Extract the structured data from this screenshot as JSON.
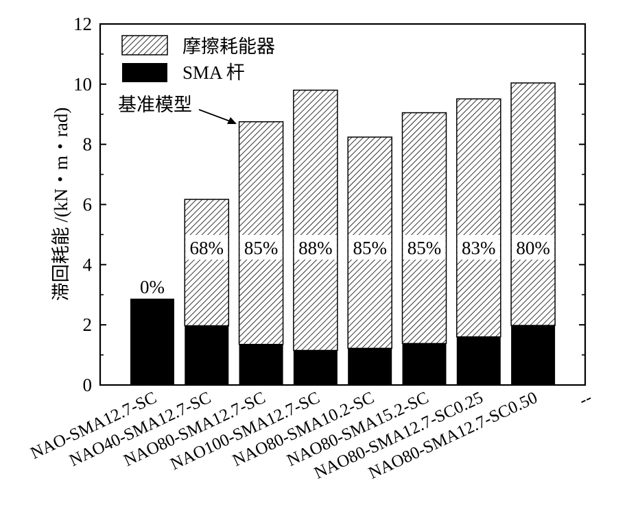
{
  "chart_data": {
    "type": "bar",
    "stacked": true,
    "ylabel": "滞回耗能 /(kN・m・rad)",
    "xlabel": "",
    "ylim": [
      0,
      12
    ],
    "yticks": [
      "0",
      "2",
      "4",
      "6",
      "8",
      "10",
      "12"
    ],
    "categories": [
      "NAO-SMA12.7-SC",
      "NAO40-SMA12.7-SC",
      "NAO80-SMA12.7-SC",
      "NAO100-SMA12.7-SC",
      "NAO80-SMA10.2-SC",
      "NAO80-SMA15.2-SC",
      "NAO80-SMA12.7-SC0.25",
      "NAO80-SMA12.7-SC0.50",
      "--"
    ],
    "series": [
      {
        "name": "SMA 杆",
        "fill": "solid-black",
        "values": [
          2.87,
          1.97,
          1.35,
          1.15,
          1.22,
          1.38,
          1.6,
          1.98,
          null
        ]
      },
      {
        "name": "摩擦耗能器",
        "fill": "hatched",
        "values": [
          0,
          4.2,
          7.4,
          8.65,
          7.02,
          7.67,
          7.91,
          8.06,
          null
        ]
      }
    ],
    "bar_labels": [
      "0%",
      "68%",
      "85%",
      "88%",
      "85%",
      "85%",
      "83%",
      "80%",
      ""
    ],
    "annotation": {
      "text": "基准模型",
      "target_index": 2
    },
    "legend": {
      "position": "top-left",
      "items": [
        "摩擦耗能器",
        "SMA 杆"
      ]
    },
    "grid": false,
    "colors": {
      "bar_fill": "#000000",
      "hatch": "#000000",
      "background": "#ffffff"
    }
  }
}
